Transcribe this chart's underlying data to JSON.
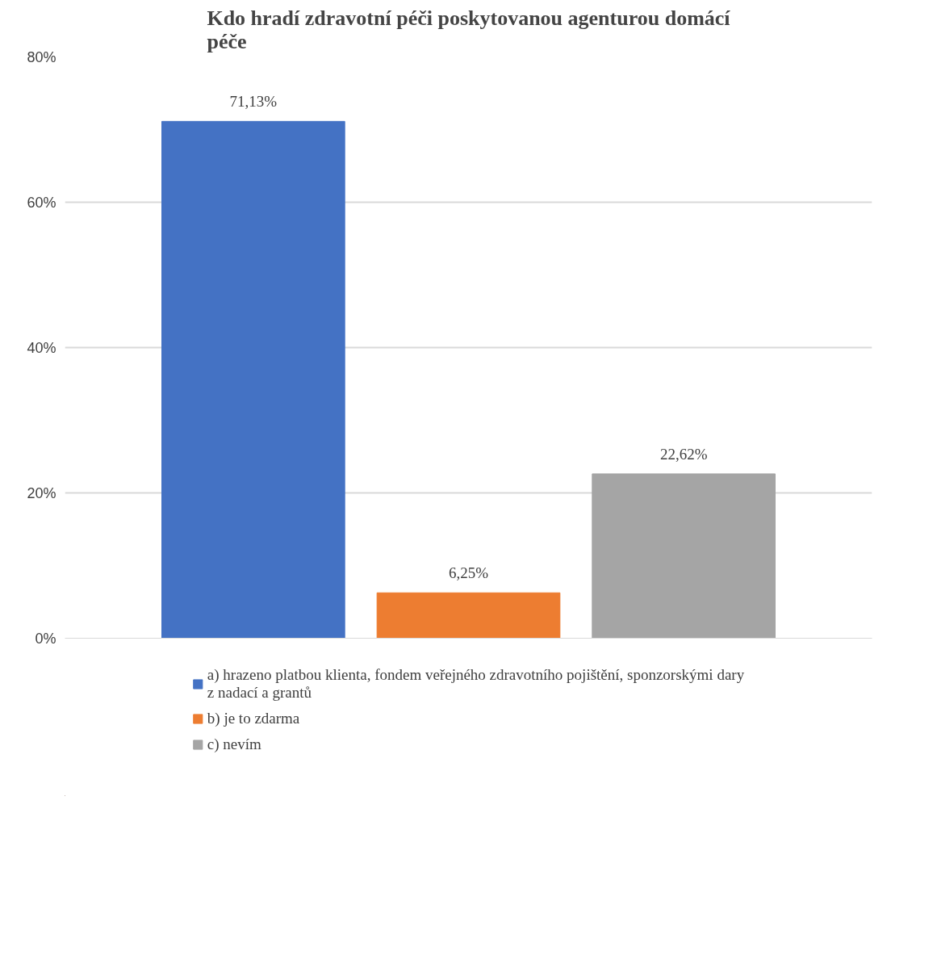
{
  "chart_data": {
    "type": "bar",
    "title": "Kdo hradí zdravotní péči poskytovanou agenturou domácí péče",
    "categories": [
      null
    ],
    "series": [
      {
        "name": "a) hrazeno platbou klienta, fondem veřejného zdravotního pojištění, sponzorskými dary z nadací a grantů",
        "color": "#4472c4",
        "values": [
          71.13
        ],
        "value_labels": [
          "71,13%"
        ]
      },
      {
        "name": "b) je to zdarma",
        "color": "#ed7d31",
        "values": [
          6.25
        ],
        "value_labels": [
          "6,25%"
        ]
      },
      {
        "name": "c) nevím",
        "color": "#a5a5a5",
        "values": [
          22.62
        ],
        "value_labels": [
          "22,62%"
        ]
      }
    ],
    "ylim": [
      0,
      80
    ],
    "yticks": [
      {
        "value": 0,
        "label": "0%"
      },
      {
        "value": 20,
        "label": "20%"
      },
      {
        "value": 40,
        "label": "40%"
      },
      {
        "value": 60,
        "label": "60%"
      },
      {
        "value": 80,
        "label": "80%"
      }
    ],
    "grid": "y",
    "legend": "bottom"
  }
}
